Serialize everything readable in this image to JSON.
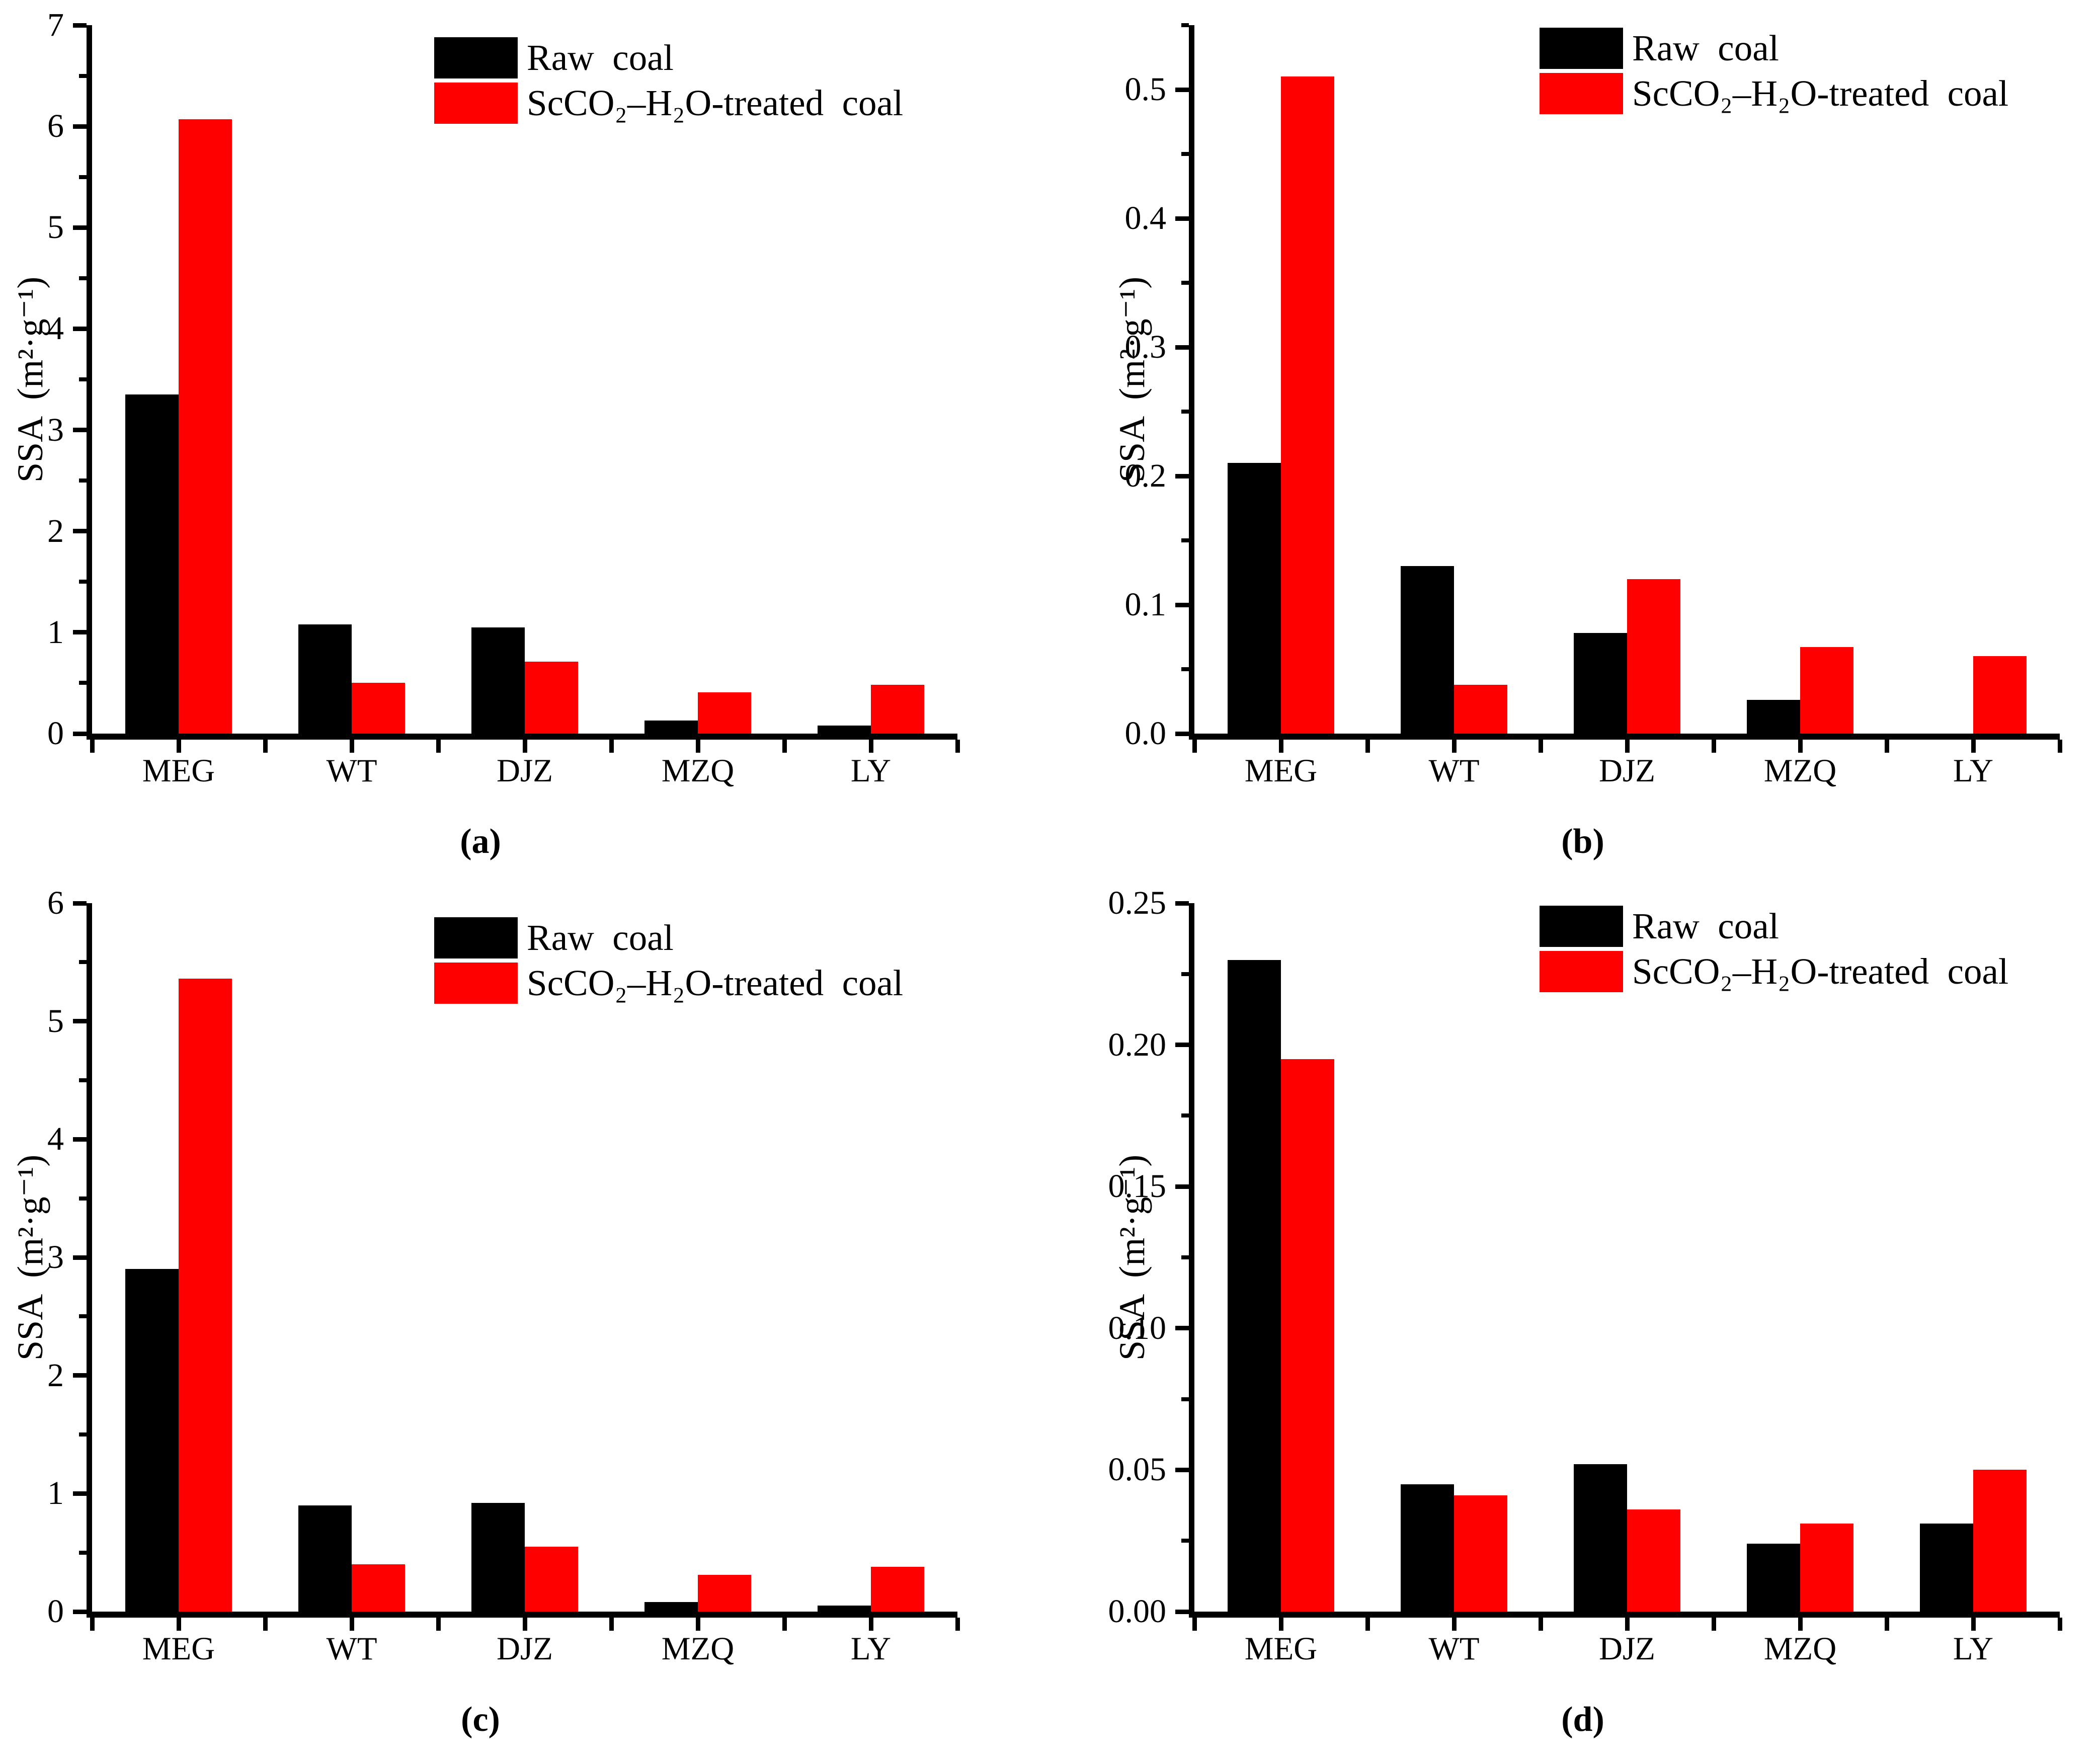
{
  "figure": {
    "background": "#ffffff",
    "accent_red": "#ff0000",
    "accent_black": "#000000"
  },
  "chart_data": [
    {
      "type": "bar",
      "panel_label": "(a)",
      "title": "",
      "xlabel": "",
      "ylabel": "SSA  (m²·g⁻¹)",
      "categories": [
        "MEG",
        "WT",
        "DJZ",
        "MZQ",
        "LY"
      ],
      "series": [
        {
          "name": "Raw  coal",
          "color": "#000000",
          "values": [
            3.35,
            1.08,
            1.05,
            0.13,
            0.08
          ]
        },
        {
          "name": "ScCO₂–H₂O-treated  coal",
          "color": "#ff0000",
          "values": [
            6.07,
            0.5,
            0.71,
            0.41,
            0.48
          ]
        }
      ],
      "ylim": [
        0,
        7
      ],
      "ytick_labels": [
        "0",
        "1",
        "2",
        "3",
        "4",
        "5",
        "6",
        "7"
      ],
      "minor_ticks": [
        0.5,
        1.5,
        2.5,
        3.5,
        4.5,
        5.5,
        6.5
      ],
      "grid": false,
      "legend_position": "top-right"
    },
    {
      "type": "bar",
      "panel_label": "(b)",
      "title": "",
      "xlabel": "",
      "ylabel": "SSA  (m²·g⁻¹)",
      "categories": [
        "MEG",
        "WT",
        "DJZ",
        "MZQ",
        "LY"
      ],
      "series": [
        {
          "name": "Raw  coal",
          "color": "#000000",
          "values": [
            0.21,
            0.13,
            0.078,
            0.026,
            0
          ]
        },
        {
          "name": "ScCO₂–H₂O-treated  coal",
          "color": "#ff0000",
          "values": [
            0.51,
            0.038,
            0.12,
            0.067,
            0.06
          ]
        }
      ],
      "ylim": [
        0,
        0.55
      ],
      "ytick_labels": [
        "0.0",
        "0.1",
        "0.2",
        "0.3",
        "0.4",
        "0.5"
      ],
      "minor_ticks": [
        0.05,
        0.15,
        0.25,
        0.35,
        0.45,
        0.55
      ],
      "grid": false,
      "legend_position": "top-right"
    },
    {
      "type": "bar",
      "panel_label": "(c)",
      "title": "",
      "xlabel": "",
      "ylabel": "SSA  (m²·g⁻¹)",
      "categories": [
        "MEG",
        "WT",
        "DJZ",
        "MZQ",
        "LY"
      ],
      "series": [
        {
          "name": "Raw  coal",
          "color": "#000000",
          "values": [
            2.9,
            0.9,
            0.92,
            0.08,
            0.05
          ]
        },
        {
          "name": "ScCO₂–H₂O-treated  coal",
          "color": "#ff0000",
          "values": [
            5.36,
            0.4,
            0.55,
            0.31,
            0.38
          ]
        }
      ],
      "ylim": [
        0,
        6
      ],
      "ytick_labels": [
        "0",
        "1",
        "2",
        "3",
        "4",
        "5",
        "6"
      ],
      "minor_ticks": [
        0.5,
        1.5,
        2.5,
        3.5,
        4.5,
        5.5
      ],
      "grid": false,
      "legend_position": "top-right"
    },
    {
      "type": "bar",
      "panel_label": "(d)",
      "title": "",
      "xlabel": "",
      "ylabel": "SSA  (m²·g⁻¹)",
      "categories": [
        "MEG",
        "WT",
        "DJZ",
        "MZQ",
        "LY"
      ],
      "series": [
        {
          "name": "Raw  coal",
          "color": "#000000",
          "values": [
            0.23,
            0.045,
            0.052,
            0.024,
            0.031
          ]
        },
        {
          "name": "ScCO₂–H₂O-treated  coal",
          "color": "#ff0000",
          "values": [
            0.195,
            0.041,
            0.036,
            0.031,
            0.05
          ]
        }
      ],
      "ylim": [
        0,
        0.25
      ],
      "ytick_labels": [
        "0.00",
        "0.05",
        "0.10",
        "0.15",
        "0.20",
        "0.25"
      ],
      "minor_ticks": [
        0.025,
        0.075,
        0.125,
        0.175,
        0.225
      ],
      "grid": false,
      "legend_position": "top-right"
    }
  ]
}
